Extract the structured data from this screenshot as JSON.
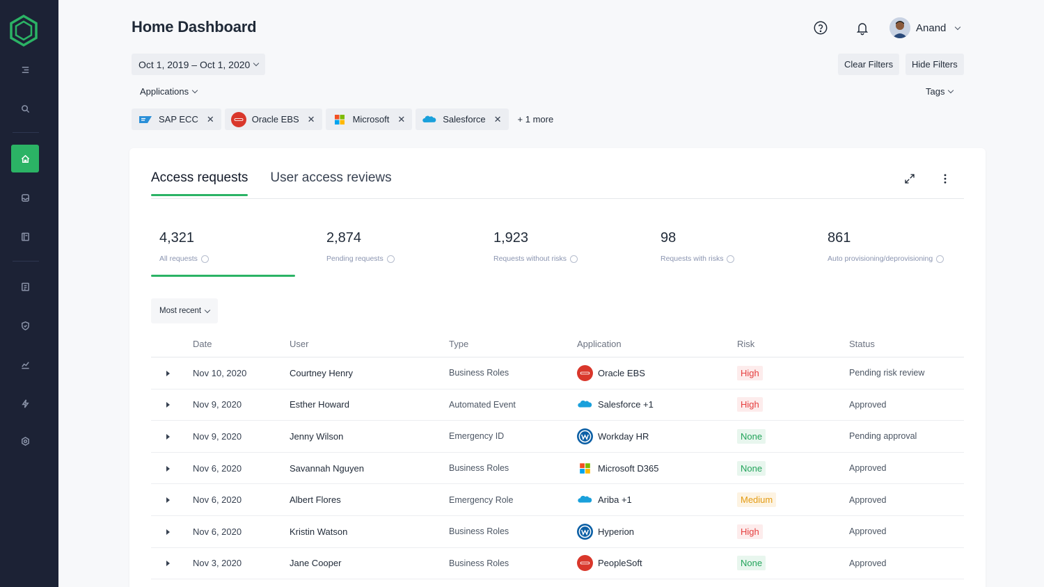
{
  "colors": {
    "sidebar_bg": "#1c2235",
    "accent_green": "#2bb365",
    "risk_high_text": "#e53e3e",
    "risk_high_bg": "#fdecec",
    "risk_none_text": "#22a35a",
    "risk_none_bg": "#e8f6ee",
    "risk_medium_text": "#e39b12",
    "risk_medium_bg": "#fdf3e2"
  },
  "sidebar": {
    "logo_icon": "hexagon-logo",
    "items": [
      {
        "icon": "menu-icon"
      },
      {
        "icon": "search-icon"
      },
      {
        "icon": "home-icon",
        "active": true
      },
      {
        "icon": "inbox-icon"
      },
      {
        "icon": "book-icon"
      },
      {
        "icon": "report-icon"
      },
      {
        "icon": "shield-icon"
      },
      {
        "icon": "chart-icon"
      },
      {
        "icon": "bolt-icon"
      },
      {
        "icon": "settings-icon"
      }
    ]
  },
  "header": {
    "title": "Home Dashboard",
    "help_icon": "help-icon",
    "bell_icon": "bell-icon",
    "user_name": "Anand"
  },
  "filters": {
    "date_range": "Oct 1, 2019 – Oct 1, 2020",
    "clear_label": "Clear Filters",
    "hide_label": "Hide Filters",
    "applications_label": "Applications",
    "tags_label": "Tags",
    "chips": [
      {
        "label": "SAP ECC",
        "icon": "sap-logo"
      },
      {
        "label": "Oracle EBS",
        "icon": "oracle-logo"
      },
      {
        "label": "Microsoft",
        "icon": "microsoft-logo"
      },
      {
        "label": "Salesforce",
        "icon": "salesforce-logo"
      }
    ],
    "more_label": "+ 1 more"
  },
  "card": {
    "tabs": [
      {
        "label": "Access requests",
        "active": true
      },
      {
        "label": "User access reviews",
        "active": false
      }
    ],
    "stats": [
      {
        "value": "4,321",
        "label": "All requests",
        "active": true
      },
      {
        "value": "2,874",
        "label": "Pending requests"
      },
      {
        "value": "1,923",
        "label": "Requests without risks"
      },
      {
        "value": "98",
        "label": "Requests with risks"
      },
      {
        "value": "861",
        "label": "Auto provisioning/deprovisioning"
      }
    ],
    "sort_label": "Most recent",
    "table": {
      "headers": [
        "Date",
        "User",
        "Type",
        "Application",
        "Risk",
        "Status"
      ],
      "rows": [
        {
          "date": "Nov 10, 2020",
          "user": "Courtney Henry",
          "type": "Business Roles",
          "app": "Oracle EBS",
          "app_icon": "oracle",
          "risk": "High",
          "status": "Pending risk review"
        },
        {
          "date": "Nov 9, 2020",
          "user": "Esther Howard",
          "type": "Automated Event",
          "app": "Salesforce +1",
          "app_icon": "salesforce",
          "risk": "High",
          "status": "Approved"
        },
        {
          "date": "Nov 9, 2020",
          "user": "Jenny Wilson",
          "type": "Emergency ID",
          "app": "Workday HR",
          "app_icon": "workday",
          "risk": "None",
          "status": "Pending approval"
        },
        {
          "date": "Nov 6, 2020",
          "user": "Savannah Nguyen",
          "type": "Business Roles",
          "app": "Microsoft D365",
          "app_icon": "microsoft",
          "risk": "None",
          "status": "Approved"
        },
        {
          "date": "Nov 6, 2020",
          "user": "Albert Flores",
          "type": "Emergency Role",
          "app": "Ariba +1",
          "app_icon": "salesforce",
          "risk": "Medium",
          "status": "Approved"
        },
        {
          "date": "Nov 6, 2020",
          "user": "Kristin Watson",
          "type": "Business Roles",
          "app": "Hyperion",
          "app_icon": "workday",
          "risk": "High",
          "status": "Approved"
        },
        {
          "date": "Nov 3, 2020",
          "user": "Jane Cooper",
          "type": "Business Roles",
          "app": "PeopleSoft",
          "app_icon": "oracle",
          "risk": "None",
          "status": "Approved"
        }
      ]
    }
  }
}
